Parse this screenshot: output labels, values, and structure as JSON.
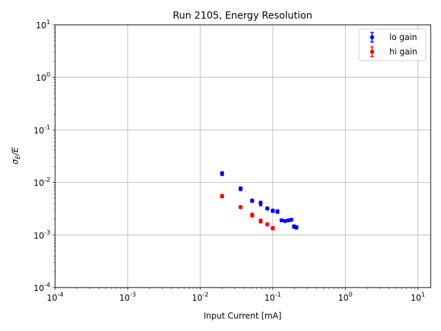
{
  "chart_data": {
    "type": "scatter",
    "title": "Run 2105, Energy Resolution",
    "xlabel": "Input Current [mA]",
    "ylabel": "σ_E/E",
    "xscale": "log",
    "yscale": "log",
    "xlim": [
      0.0001,
      15
    ],
    "ylim": [
      0.0001,
      10
    ],
    "xticks": [
      0.0001,
      0.001,
      0.01,
      0.1,
      1,
      10
    ],
    "yticks": [
      0.0001,
      0.001,
      0.01,
      0.1,
      1,
      10
    ],
    "grid": true,
    "legend_position": "top-right",
    "series": [
      {
        "name": "lo gain",
        "color": "#0000ff",
        "x": [
          0.02,
          0.036,
          0.052,
          0.068,
          0.084,
          0.1,
          0.116,
          0.132,
          0.148,
          0.164,
          0.18,
          0.196,
          0.212
        ],
        "y": [
          0.0148,
          0.0076,
          0.0045,
          0.004,
          0.0032,
          0.0029,
          0.0028,
          0.0019,
          0.00185,
          0.0019,
          0.00195,
          0.00145,
          0.0014
        ],
        "yerr": [
          0.0012,
          0.0006,
          0.0003,
          0.0004,
          0.0002,
          0.0002,
          0.0002,
          0.0001,
          0.0001,
          0.0001,
          0.0001,
          0.0001,
          0.0001
        ]
      },
      {
        "name": "hi gain",
        "color": "#ff0000",
        "x": [
          0.02,
          0.036,
          0.052,
          0.068,
          0.084,
          0.1
        ],
        "y": [
          0.0055,
          0.0034,
          0.0024,
          0.00185,
          0.0016,
          0.00135
        ],
        "yerr": [
          0.0004,
          0.0002,
          0.0002,
          0.00015,
          0.0001,
          0.0001
        ]
      }
    ]
  }
}
